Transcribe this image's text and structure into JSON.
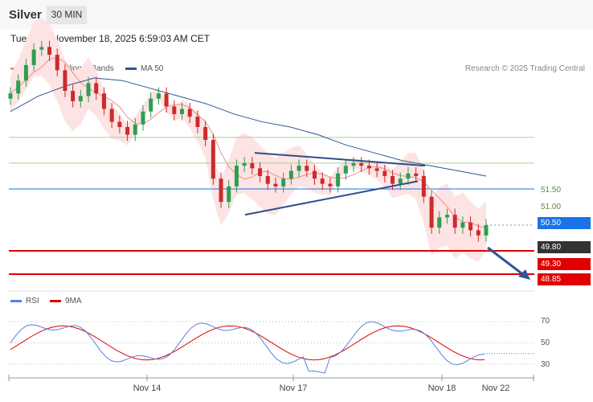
{
  "header": {
    "instrument": "Silver",
    "timeframe": "30 MIN"
  },
  "datetime": "Tuesday, November 18, 2025 6:59:03 AM CET",
  "legend": {
    "ma20": {
      "label": "MA 20 + Bollinger Bands",
      "color": "#f08c8c"
    },
    "ma50": {
      "label": "MA 50",
      "color": "#2f5597"
    }
  },
  "copyright": "Research © 2025 Trading Central",
  "rsi_legend": {
    "rsi": {
      "label": "RSI",
      "color": "#5a7fe0"
    },
    "ma9": {
      "label": "9MA",
      "color": "#e00000"
    }
  },
  "levels": [
    {
      "value": "51.50",
      "kind": "resistance-faint",
      "color": "#a8d08d"
    },
    {
      "value": "51.00",
      "kind": "resistance-faint",
      "color": "#a8d08d"
    },
    {
      "value": "50.50",
      "kind": "pivot",
      "color": "#1a73e8"
    },
    {
      "value": "49.80",
      "kind": "last",
      "color": "#333333"
    },
    {
      "value": "49.30",
      "kind": "support",
      "color": "#e00000"
    },
    {
      "value": "48.85",
      "kind": "support",
      "color": "#e00000"
    }
  ],
  "x_labels": [
    "Nov 14",
    "Nov 17",
    "Nov 18",
    "Nov 22"
  ],
  "rsi_levels": [
    "70",
    "50",
    "30"
  ],
  "chart_data": {
    "type": "candlestick",
    "title": "Silver",
    "timeframe": "30 MIN",
    "ylim": [
      48.6,
      53.6
    ],
    "x_ticks": [
      "Nov 14",
      "Nov 17",
      "Nov 18",
      "Nov 22"
    ],
    "close": [
      52.35,
      52.6,
      52.9,
      53.2,
      53.25,
      53.1,
      52.8,
      52.4,
      52.2,
      52.3,
      52.55,
      52.35,
      52.05,
      51.8,
      51.7,
      51.55,
      51.75,
      52.0,
      52.25,
      52.35,
      52.1,
      51.95,
      52.05,
      51.9,
      51.7,
      51.45,
      50.7,
      50.25,
      50.55,
      50.95,
      51.0,
      50.9,
      50.75,
      50.6,
      50.55,
      50.7,
      50.85,
      50.95,
      50.85,
      50.7,
      50.6,
      50.55,
      50.8,
      50.95,
      51.0,
      50.95,
      50.9,
      50.85,
      50.75,
      50.6,
      50.7,
      50.8,
      50.75,
      50.35,
      49.75,
      49.95,
      50.0,
      49.75,
      49.85,
      49.7,
      49.6,
      49.8
    ],
    "ma50": [
      52.0,
      52.3,
      52.5,
      52.65,
      52.6,
      52.45,
      52.3,
      52.15,
      51.95,
      51.8,
      51.7,
      51.55,
      51.35,
      51.2,
      51.05,
      50.95,
      50.85,
      50.75
    ],
    "trendlines": {
      "upper": [
        [
          51.2,
          0
        ],
        [
          50.95,
          1
        ]
      ],
      "lower": [
        [
          50.0,
          0
        ],
        [
          50.65,
          1
        ]
      ]
    },
    "rsi": {
      "levels": [
        70,
        50,
        30
      ],
      "last": 40
    }
  }
}
